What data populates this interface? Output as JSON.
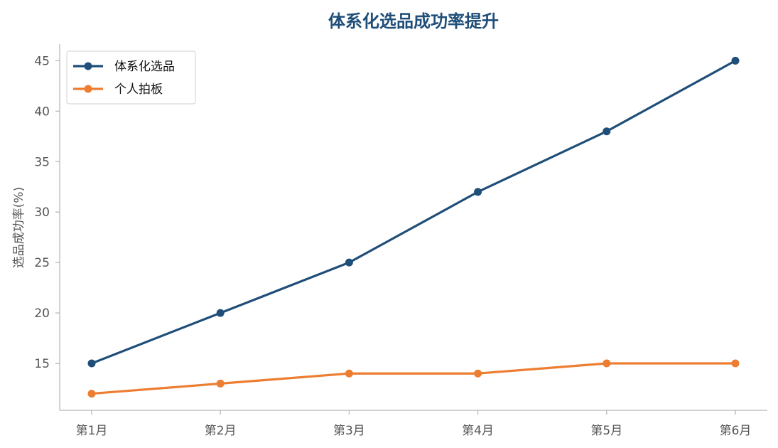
{
  "chart_data": {
    "type": "line",
    "title": "体系化选品成功率提升",
    "xlabel": "",
    "ylabel": "选品成功率(%)",
    "categories": [
      "第1月",
      "第2月",
      "第3月",
      "第4月",
      "第5月",
      "第6月"
    ],
    "series": [
      {
        "name": "体系化选品",
        "values": [
          15,
          20,
          25,
          32,
          38,
          45
        ],
        "color": "#1f4e79"
      },
      {
        "name": "个人拍板",
        "values": [
          12,
          13,
          14,
          14,
          15,
          15
        ],
        "color": "#ed7d31"
      }
    ],
    "yticks": [
      15,
      20,
      25,
      30,
      35,
      40,
      45
    ],
    "ylim": [
      10.35,
      46.65
    ],
    "grid": false,
    "legend": "top-left",
    "title_color": "#1f4e79"
  }
}
